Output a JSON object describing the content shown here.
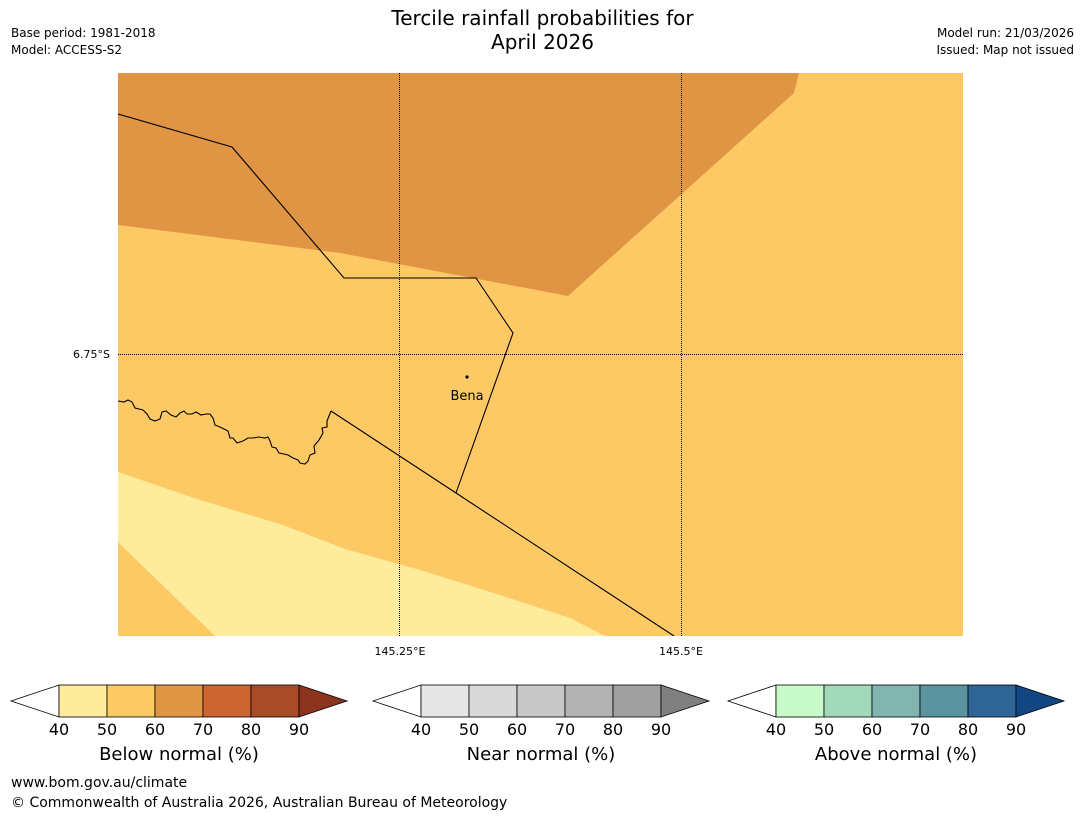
{
  "title": {
    "line1": "Tercile rainfall probabilities for",
    "line2": "April 2026"
  },
  "meta_left": {
    "base_period": "Base period: 1981-2018",
    "model": "Model: ACCESS-S2"
  },
  "meta_right": {
    "model_run": "Model run: 21/03/2026",
    "issued": "Issued: Map not issued"
  },
  "map": {
    "latitude_label": "6.75°S",
    "longitude_labels": [
      "145.25°E",
      "145.5°E"
    ],
    "place_label": "Bena",
    "colors": {
      "below_60_70": "#e09545",
      "below_50_60": "#fdc965",
      "below_40_50": "#feeb9c"
    }
  },
  "colorbars": [
    {
      "name": "below",
      "label": "Below normal (%)",
      "ticks": [
        "40",
        "50",
        "60",
        "70",
        "80",
        "90"
      ],
      "colors": [
        "#ffffff",
        "#feeb9c",
        "#fdc965",
        "#e09545",
        "#cb6532",
        "#a94a29",
        "#8c3320"
      ]
    },
    {
      "name": "near",
      "label": "Near normal (%)",
      "ticks": [
        "40",
        "50",
        "60",
        "70",
        "80",
        "90"
      ],
      "colors": [
        "#ffffff",
        "#e6e6e6",
        "#d9d9d9",
        "#c8c8c8",
        "#b3b3b3",
        "#a0a0a0",
        "#808080"
      ]
    },
    {
      "name": "above",
      "label": "Above normal (%)",
      "ticks": [
        "40",
        "50",
        "60",
        "70",
        "80",
        "90"
      ],
      "colors": [
        "#ffffff",
        "#c9fac9",
        "#a3d9bb",
        "#80b6af",
        "#5a949f",
        "#2e6596",
        "#124683"
      ]
    }
  ],
  "footer": {
    "url": "www.bom.gov.au/climate",
    "copyright": "© Commonwealth of Australia 2026, Australian Bureau of Meteorology"
  }
}
